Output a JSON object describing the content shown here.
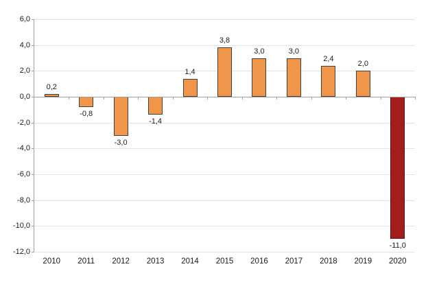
{
  "chart_data": {
    "type": "bar",
    "title": "",
    "xlabel": "",
    "ylabel": "",
    "categories": [
      "2010",
      "2011",
      "2012",
      "2013",
      "2014",
      "2015",
      "2016",
      "2017",
      "2018",
      "2019",
      "2020"
    ],
    "values": [
      0.2,
      -0.8,
      -3.0,
      -1.4,
      1.4,
      3.8,
      3.0,
      3.0,
      2.4,
      2.0,
      -11.0
    ],
    "value_labels": [
      "0,2",
      "-0,8",
      "-3,0",
      "-1,4",
      "1,4",
      "3,8",
      "3,0",
      "3,0",
      "2,4",
      "2,0",
      "-11,0"
    ],
    "ylim": [
      -12,
      6
    ],
    "ytick_step": 2,
    "ytick_labels": [
      "6,0",
      "4,0",
      "2,0",
      "0,0",
      "-2,0",
      "-4,0",
      "-6,0",
      "-8,0",
      "-10,0",
      "-12,0"
    ],
    "grid": true,
    "legend": "none",
    "decimal_separator": ",",
    "bar_fill_colors": [
      "#F0964B",
      "#F0964B",
      "#F0964B",
      "#F0964B",
      "#F0964B",
      "#F0964B",
      "#F0964B",
      "#F0964B",
      "#F0964B",
      "#F0964B",
      "#A31D1D"
    ],
    "bar_border_colors": [
      "#404040",
      "#404040",
      "#404040",
      "#404040",
      "#404040",
      "#404040",
      "#404040",
      "#404040",
      "#404040",
      "#404040",
      "#5E0F0F"
    ],
    "colors": {
      "background": "#ffffff",
      "grid": "#e4e4e4",
      "axis": "#a0a0a0",
      "text": "#1a1a1a",
      "bar_default": "#F0964B",
      "bar_highlight": "#A31D1D"
    }
  }
}
